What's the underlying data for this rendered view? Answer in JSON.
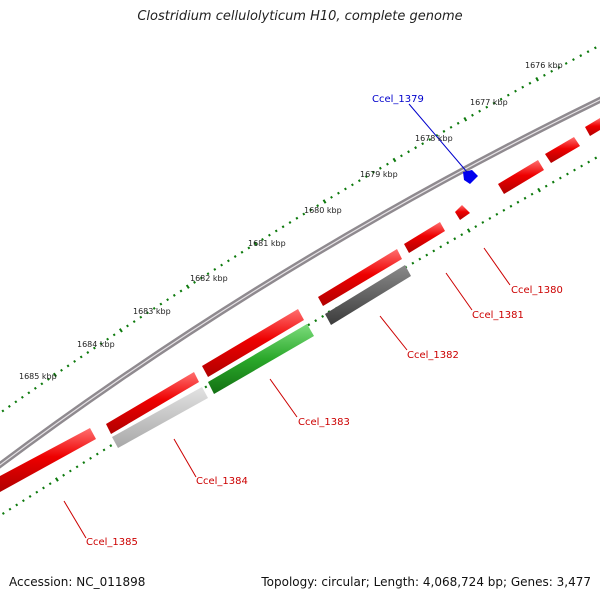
{
  "title": "Clostridium cellulolyticum H10, complete genome",
  "footer": {
    "accession": "Accession: NC_011898",
    "summary": "Topology: circular; Length: 4,068,724 bp; Genes: 3,477"
  },
  "colors": {
    "backbone": "#8f8a8f",
    "tick": "#0d7a0d",
    "gene_label": "#cc0000",
    "highlight_label": "#0000cc",
    "forward_gene": "#ee0000",
    "selected_gene": "#0000ee",
    "rrna_gene": "#33bb33",
    "dark_gene": "#555555",
    "light_gene": "#c4c4c4"
  },
  "scale_labels": [
    "1676 kbp",
    "1677 kbp",
    "1678 kbp",
    "1679 kbp",
    "1680 kbp",
    "1681 kbp",
    "1682 kbp",
    "1683 kbp",
    "1684 kbp",
    "1685 kbp"
  ],
  "gene_labels": [
    {
      "text": "Ccel_1379",
      "color": "blue"
    },
    {
      "text": "Ccel_1380",
      "color": "red"
    },
    {
      "text": "Ccel_1381",
      "color": "red"
    },
    {
      "text": "Ccel_1382",
      "color": "red"
    },
    {
      "text": "Ccel_1383",
      "color": "red"
    },
    {
      "text": "Ccel_1384",
      "color": "red"
    },
    {
      "text": "Ccel_1385",
      "color": "red"
    }
  ]
}
